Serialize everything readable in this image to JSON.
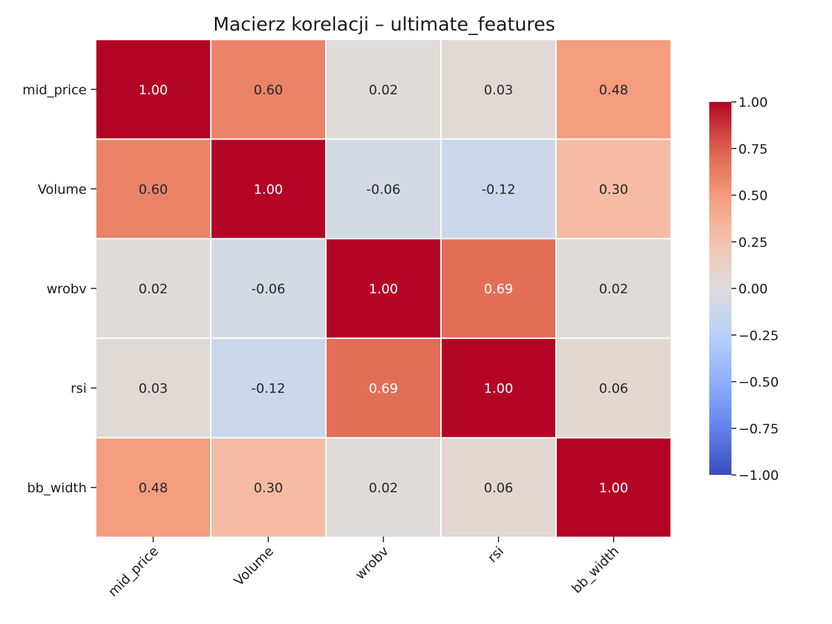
{
  "chart_data": {
    "type": "heatmap",
    "title": "Macierz korelacji – ultimate_features",
    "xlabel": "",
    "ylabel": "",
    "row_labels": [
      "mid_price",
      "Volume",
      "wrobv",
      "rsi",
      "bb_width"
    ],
    "col_labels": [
      "mid_price",
      "Volume",
      "wrobv",
      "rsi",
      "bb_width"
    ],
    "values": [
      [
        1.0,
        0.6,
        0.02,
        0.03,
        0.48
      ],
      [
        0.6,
        1.0,
        -0.06,
        -0.12,
        0.3
      ],
      [
        0.02,
        -0.06,
        1.0,
        0.69,
        0.02
      ],
      [
        0.03,
        -0.12,
        0.69,
        1.0,
        0.06
      ],
      [
        0.48,
        0.3,
        0.02,
        0.06,
        1.0
      ]
    ],
    "cell_labels": [
      [
        "1.00",
        "0.60",
        "0.02",
        "0.03",
        "0.48"
      ],
      [
        "0.60",
        "1.00",
        "-0.06",
        "-0.12",
        "0.30"
      ],
      [
        "0.02",
        "-0.06",
        "1.00",
        "0.69",
        "0.02"
      ],
      [
        "0.03",
        "-0.12",
        "0.69",
        "1.00",
        "0.06"
      ],
      [
        "0.48",
        "0.30",
        "0.02",
        "0.06",
        "1.00"
      ]
    ],
    "vmin": -1.0,
    "vmax": 1.0,
    "colormap": "coolwarm",
    "colorbar": {
      "ticks": [
        1.0,
        0.75,
        0.5,
        0.25,
        0.0,
        -0.25,
        -0.5,
        -0.75,
        -1.0
      ],
      "tick_labels": [
        "1.00",
        "0.75",
        "0.50",
        "0.25",
        "0.00",
        "−0.25",
        "−0.50",
        "−0.75",
        "−1.00"
      ],
      "placement": "right"
    },
    "x_tick_rotation": 45,
    "grid": false
  }
}
